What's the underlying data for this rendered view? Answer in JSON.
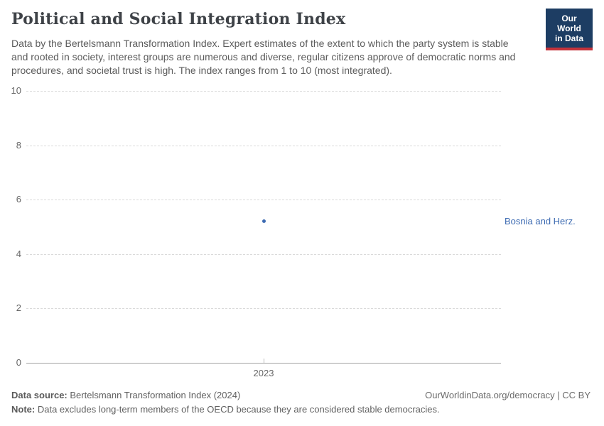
{
  "header": {
    "title": "Political and Social Integration Index",
    "subtitle": "Data by the Bertelsmann Transformation Index. Expert estimates of the extent to which the party system is stable and rooted in society, interest groups are numerous and diverse, regular citizens approve of democratic norms and procedures, and societal trust is high. The index ranges from 1 to 10 (most integrated)."
  },
  "logo": {
    "line1": "Our World",
    "line2": "in Data",
    "bg_color": "#1d3d63",
    "stripe_color": "#c5333b"
  },
  "chart_data": {
    "type": "scatter",
    "title": "Political and Social Integration Index",
    "x": [
      2023
    ],
    "xticks": [
      "2023"
    ],
    "series": [
      {
        "name": "Bosnia and Herz.",
        "values": [
          5.2
        ],
        "color": "#3d6bb2"
      }
    ],
    "ylim": [
      0,
      10
    ],
    "yticks": [
      0,
      2,
      4,
      6,
      8,
      10
    ],
    "xlabel": "",
    "ylabel": "",
    "grid": "horizontal-dashed",
    "legend": "entity-label-right-of-point"
  },
  "footer": {
    "source_label": "Data source:",
    "source_text": "Bertelsmann Transformation Index (2024)",
    "link_text": "OurWorldinData.org/democracy | CC BY",
    "note_label": "Note:",
    "note_text": "Data excludes long-term members of the OECD because they are considered stable democracies."
  }
}
